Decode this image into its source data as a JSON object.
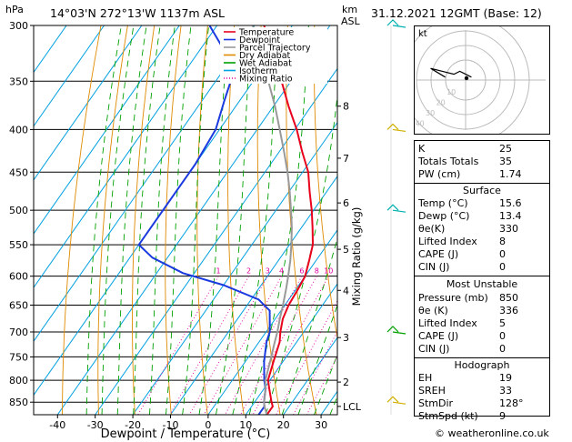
{
  "header": {
    "hpa_unit": "hPa",
    "location": "14°03'N  272°13'W  1137m  ASL",
    "km_unit": "km",
    "asl_unit": "ASL",
    "datetime": "31.12.2021  12GMT  (Base: 12)"
  },
  "legend": [
    {
      "label": "Temperature",
      "color": "#e8001c",
      "dash": ""
    },
    {
      "label": "Dewpoint",
      "color": "#1a3adf",
      "dash": ""
    },
    {
      "label": "Parcel Trajectory",
      "color": "#999999",
      "dash": ""
    },
    {
      "label": "Dry Adiabat",
      "color": "#e08a00",
      "dash": ""
    },
    {
      "label": "Wet Adiabat",
      "color": "#00a000",
      "dash": ""
    },
    {
      "label": "Isotherm",
      "color": "#00a0e0",
      "dash": ""
    },
    {
      "label": "Mixing Ratio",
      "color": "#e000a0",
      "dash": "1,2"
    }
  ],
  "chart_data": {
    "type": "line",
    "xlabel": "Dewpoint / Temperature (°C)",
    "ylabel": "Mixing Ratio (g/kg)",
    "pressure_ticks": [
      "300",
      "350",
      "400",
      "450",
      "500",
      "550",
      "600",
      "650",
      "700",
      "750",
      "800",
      "850"
    ],
    "temperature_ticks": [
      "-40",
      "-30",
      "-20",
      "-10",
      "0",
      "10",
      "20",
      "30"
    ],
    "km_ticks": [
      {
        "km": "8",
        "p": 375
      },
      {
        "km": "7",
        "p": 433
      },
      {
        "km": "6",
        "p": 490
      },
      {
        "km": "5",
        "p": 557
      },
      {
        "km": "4",
        "p": 624
      },
      {
        "km": "3",
        "p": 711
      },
      {
        "km": "2",
        "p": 804
      },
      {
        "km": "LCL",
        "p": 860
      }
    ],
    "mixing_ratio_labels": [
      "1",
      "2",
      "3",
      "4",
      "6",
      "8",
      "10",
      "15",
      "20",
      "25"
    ],
    "mixing_ratio_values": [
      1,
      2,
      3,
      4,
      6,
      8,
      10,
      15,
      20,
      25
    ],
    "xlim": [
      -42,
      36
    ],
    "ylim": [
      300,
      880
    ],
    "skew": 0.7,
    "series": [
      {
        "name": "Temperature",
        "color": "#e8001c",
        "points": [
          [
            15.6,
            880
          ],
          [
            15.6,
            860
          ],
          [
            14.5,
            850
          ],
          [
            11.5,
            820
          ],
          [
            9.5,
            800
          ],
          [
            7.5,
            760
          ],
          [
            5.5,
            720
          ],
          [
            3.8,
            700
          ],
          [
            2,
            675
          ],
          [
            1,
            650
          ],
          [
            0.5,
            620
          ],
          [
            0,
            600
          ],
          [
            -1.8,
            575
          ],
          [
            -3.8,
            550
          ],
          [
            -7,
            525
          ],
          [
            -10.5,
            500
          ],
          [
            -14.5,
            475
          ],
          [
            -18.5,
            450
          ],
          [
            -24,
            425
          ],
          [
            -29.5,
            400
          ],
          [
            -36,
            375
          ],
          [
            -42.5,
            350
          ],
          [
            -50,
            325
          ],
          [
            -57.5,
            300
          ]
        ]
      },
      {
        "name": "Dewpoint",
        "color": "#1a3adf",
        "points": [
          [
            13.4,
            880
          ],
          [
            13.4,
            860
          ],
          [
            12.5,
            850
          ],
          [
            10.5,
            820
          ],
          [
            8.5,
            800
          ],
          [
            5,
            760
          ],
          [
            2,
            720
          ],
          [
            1,
            700
          ],
          [
            -3,
            660
          ],
          [
            -8,
            640
          ],
          [
            -20,
            615
          ],
          [
            -33,
            595
          ],
          [
            -44,
            570
          ],
          [
            -50,
            550
          ],
          [
            -50,
            520
          ],
          [
            -50,
            480
          ],
          [
            -50,
            440
          ],
          [
            -51,
            400
          ],
          [
            -54,
            370
          ],
          [
            -56,
            350
          ],
          [
            -64,
            320
          ],
          [
            -72,
            300
          ]
        ]
      },
      {
        "name": "Parcel Trajectory",
        "color": "#999999",
        "points": [
          [
            15.6,
            880
          ],
          [
            13.4,
            860
          ],
          [
            12.5,
            850
          ],
          [
            10.5,
            820
          ],
          [
            8.8,
            800
          ],
          [
            6.6,
            760
          ],
          [
            4.2,
            720
          ],
          [
            3,
            700
          ],
          [
            1.2,
            675
          ],
          [
            -0.5,
            650
          ],
          [
            -2.8,
            620
          ],
          [
            -4.5,
            600
          ],
          [
            -6.8,
            575
          ],
          [
            -9.5,
            550
          ],
          [
            -12.5,
            525
          ],
          [
            -16,
            500
          ],
          [
            -19.8,
            475
          ],
          [
            -24,
            450
          ],
          [
            -28.8,
            425
          ],
          [
            -34,
            400
          ],
          [
            -39.6,
            375
          ],
          [
            -46,
            350
          ],
          [
            -53,
            325
          ],
          [
            -60.5,
            300
          ]
        ]
      }
    ]
  },
  "hodograph": {
    "label": "kt",
    "rings": [
      "10",
      "20",
      "30",
      "40"
    ],
    "wind_points": [
      [
        2,
        -1
      ],
      [
        -2,
        -3
      ],
      [
        -4,
        -2
      ],
      [
        -12,
        -4
      ],
      [
        -7,
        -1
      ]
    ]
  },
  "indices": {
    "rows": [
      {
        "k": "K",
        "v": "25"
      },
      {
        "k": "Totals Totals",
        "v": "35"
      },
      {
        "k": "PW (cm)",
        "v": "1.74"
      }
    ]
  },
  "surface": {
    "title": "Surface",
    "rows": [
      {
        "k": "Temp (°C)",
        "v": "15.6"
      },
      {
        "k": "Dewp (°C)",
        "v": "13.4"
      },
      {
        "k": "θe(K)",
        "v": "330"
      },
      {
        "k": "Lifted Index",
        "v": "8"
      },
      {
        "k": "CAPE (J)",
        "v": "0"
      },
      {
        "k": "CIN (J)",
        "v": "0"
      }
    ]
  },
  "most_unstable": {
    "title": "Most Unstable",
    "rows": [
      {
        "k": "Pressure (mb)",
        "v": "850"
      },
      {
        "k": "θe (K)",
        "v": "336"
      },
      {
        "k": "Lifted Index",
        "v": "5"
      },
      {
        "k": "CAPE (J)",
        "v": "0"
      },
      {
        "k": "CIN (J)",
        "v": "0"
      }
    ]
  },
  "hodograph_stats": {
    "title": "Hodograph",
    "rows": [
      {
        "k": "EH",
        "v": "19"
      },
      {
        "k": "SREH",
        "v": "33"
      },
      {
        "k": "StmDir",
        "v": "128°"
      },
      {
        "k": "StmSpd (kt)",
        "v": "9"
      }
    ]
  },
  "footer": {
    "credit": "© weatheronline.co.uk"
  }
}
